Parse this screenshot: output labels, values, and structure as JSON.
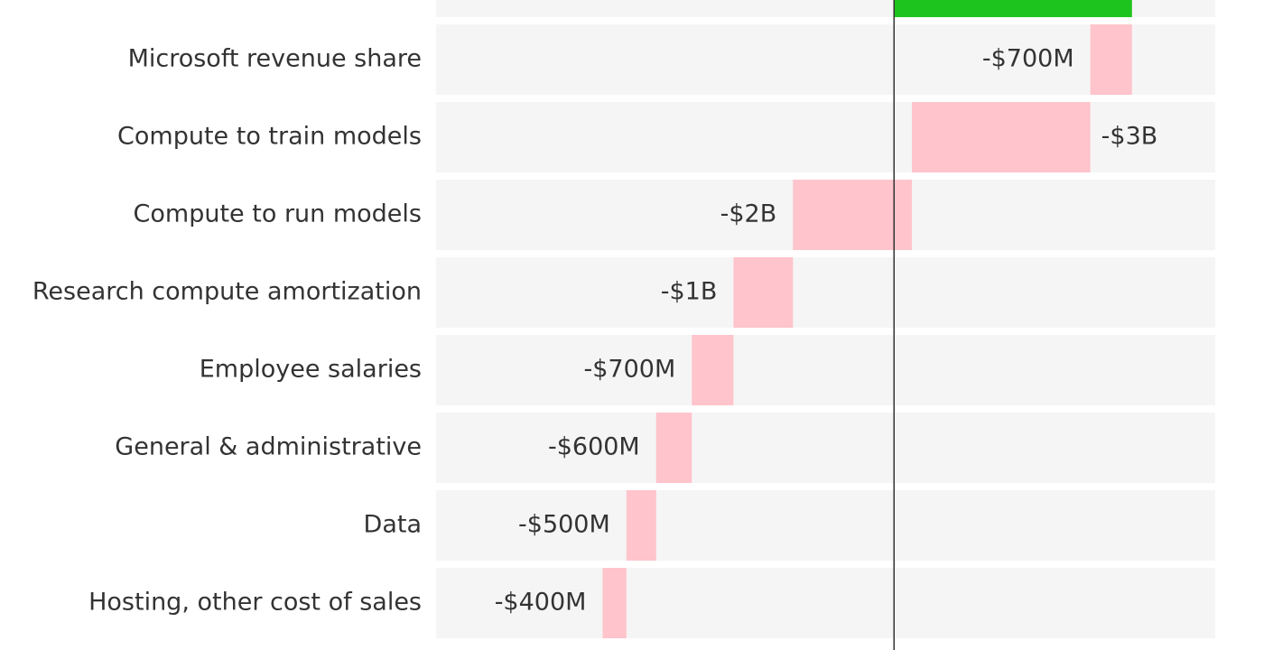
{
  "chart_data": {
    "type": "waterfall",
    "categories": [
      null,
      "Microsoft revenue share",
      "Compute to train models",
      "Compute to run models",
      "Research compute amortization",
      "Employee salaries",
      "General & administrative",
      "Data",
      "Hosting, other cost of sales"
    ],
    "values": [
      4000,
      -700,
      -3000,
      -2000,
      -1000,
      -700,
      -600,
      -500,
      -400
    ],
    "value_labels": [
      null,
      "-$700M",
      "-$3B",
      "-$2B",
      "-$1B",
      "-$700M",
      "-$600M",
      "-$500M",
      "-$400M"
    ],
    "colors": {
      "increase": "#1ec41e",
      "decrease": "#ffc4cc"
    },
    "xlim": [
      -7700,
      5400
    ]
  }
}
